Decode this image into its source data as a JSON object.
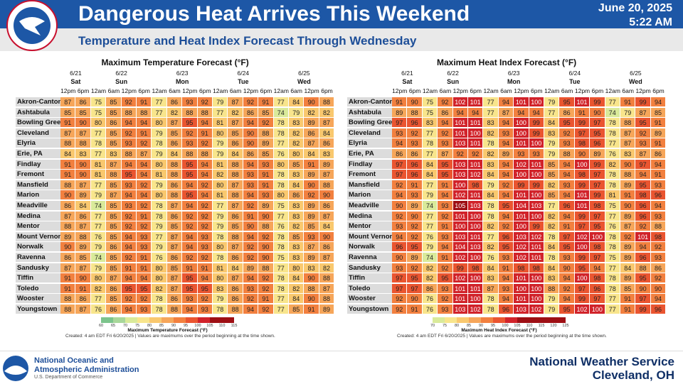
{
  "header": {
    "title": "Dangerous Heat Arrives This Weekend",
    "subtitle": "Temperature and Heat Index Forecast Through Wednesday",
    "date": "June 20, 2025",
    "time": "5:22 AM"
  },
  "tables": [
    {
      "title": "Maximum Temperature Forecast (°F)",
      "days": [
        {
          "date": "6/21",
          "day": "Sat",
          "times": [
            "12pm",
            "6pm"
          ]
        },
        {
          "date": "6/22",
          "day": "Sun",
          "times": [
            "12am",
            "6am",
            "12pm",
            "6pm"
          ]
        },
        {
          "date": "6/23",
          "day": "Mon",
          "times": [
            "12am",
            "6am",
            "12pm",
            "6pm"
          ]
        },
        {
          "date": "6/24",
          "day": "Tue",
          "times": [
            "12am",
            "6am",
            "12pm",
            "6pm"
          ]
        },
        {
          "date": "6/25",
          "day": "Wed",
          "times": [
            "12am",
            "6am",
            "12pm",
            "6pm"
          ]
        }
      ],
      "rows": [
        {
          "city": "Akron-Canton",
          "values": [
            87,
            86,
            75,
            85,
            92,
            91,
            77,
            86,
            93,
            92,
            79,
            87,
            92,
            91,
            77,
            84,
            90,
            88
          ]
        },
        {
          "city": "Ashtabula",
          "values": [
            85,
            85,
            75,
            85,
            88,
            88,
            77,
            82,
            88,
            88,
            77,
            82,
            86,
            85,
            74,
            79,
            82,
            82
          ]
        },
        {
          "city": "Bowling Green",
          "values": [
            91,
            90,
            80,
            86,
            94,
            94,
            80,
            87,
            95,
            94,
            81,
            87,
            94,
            92,
            78,
            83,
            89,
            87
          ]
        },
        {
          "city": "Cleveland",
          "values": [
            87,
            87,
            77,
            85,
            92,
            91,
            79,
            85,
            92,
            91,
            80,
            85,
            90,
            88,
            78,
            82,
            86,
            84
          ]
        },
        {
          "city": "Elyria",
          "values": [
            88,
            88,
            78,
            85,
            93,
            92,
            78,
            86,
            93,
            92,
            79,
            86,
            90,
            89,
            77,
            82,
            87,
            86
          ]
        },
        {
          "city": "Erie, PA",
          "values": [
            84,
            83,
            77,
            83,
            88,
            87,
            79,
            84,
            88,
            88,
            79,
            84,
            86,
            85,
            76,
            80,
            84,
            83
          ]
        },
        {
          "city": "Findlay",
          "values": [
            91,
            90,
            81,
            87,
            94,
            94,
            80,
            88,
            95,
            94,
            81,
            88,
            94,
            93,
            80,
            85,
            91,
            89
          ]
        },
        {
          "city": "Fremont",
          "values": [
            91,
            90,
            81,
            88,
            95,
            94,
            81,
            88,
            95,
            94,
            82,
            88,
            93,
            91,
            78,
            83,
            89,
            87
          ]
        },
        {
          "city": "Mansfield",
          "values": [
            88,
            87,
            77,
            85,
            93,
            92,
            79,
            86,
            94,
            92,
            80,
            87,
            93,
            91,
            78,
            84,
            90,
            88
          ]
        },
        {
          "city": "Marion",
          "values": [
            90,
            89,
            79,
            87,
            94,
            94,
            80,
            88,
            95,
            94,
            81,
            88,
            94,
            93,
            80,
            86,
            92,
            90
          ]
        },
        {
          "city": "Meadville",
          "values": [
            86,
            84,
            74,
            85,
            93,
            92,
            78,
            87,
            94,
            92,
            77,
            87,
            92,
            89,
            75,
            83,
            89,
            86
          ]
        },
        {
          "city": "Medina",
          "values": [
            87,
            86,
            77,
            85,
            92,
            91,
            78,
            86,
            92,
            92,
            79,
            86,
            91,
            90,
            77,
            83,
            89,
            87
          ]
        },
        {
          "city": "Mentor",
          "values": [
            88,
            87,
            77,
            85,
            92,
            92,
            79,
            85,
            92,
            92,
            79,
            85,
            90,
            88,
            76,
            82,
            85,
            84
          ]
        },
        {
          "city": "Mount Vernon",
          "values": [
            89,
            88,
            76,
            85,
            94,
            93,
            77,
            87,
            94,
            93,
            78,
            88,
            94,
            92,
            78,
            85,
            93,
            90
          ]
        },
        {
          "city": "Norwalk",
          "values": [
            90,
            89,
            79,
            86,
            94,
            93,
            79,
            87,
            94,
            93,
            80,
            87,
            92,
            90,
            78,
            83,
            87,
            86
          ]
        },
        {
          "city": "Ravenna",
          "values": [
            86,
            85,
            74,
            85,
            92,
            91,
            76,
            86,
            92,
            92,
            78,
            86,
            92,
            90,
            75,
            83,
            89,
            87
          ]
        },
        {
          "city": "Sandusky",
          "values": [
            87,
            87,
            79,
            85,
            91,
            91,
            80,
            85,
            91,
            91,
            81,
            84,
            89,
            88,
            77,
            80,
            83,
            82
          ]
        },
        {
          "city": "Tiffin",
          "values": [
            91,
            90,
            80,
            87,
            94,
            94,
            80,
            87,
            95,
            94,
            80,
            87,
            94,
            92,
            78,
            84,
            90,
            88
          ]
        },
        {
          "city": "Toledo",
          "values": [
            91,
            91,
            82,
            86,
            95,
            95,
            82,
            87,
            95,
            95,
            83,
            86,
            93,
            92,
            78,
            82,
            88,
            87
          ]
        },
        {
          "city": "Wooster",
          "values": [
            88,
            86,
            77,
            85,
            92,
            92,
            78,
            86,
            93,
            92,
            79,
            86,
            92,
            91,
            77,
            84,
            90,
            88
          ]
        },
        {
          "city": "Youngstown",
          "values": [
            88,
            87,
            76,
            86,
            94,
            93,
            78,
            88,
            94,
            93,
            78,
            88,
            94,
            92,
            77,
            85,
            91,
            89
          ]
        }
      ],
      "legend": {
        "values": [
          60,
          65,
          70,
          75,
          80,
          85,
          90,
          95,
          100,
          105,
          110,
          115
        ],
        "label": "Maximum Temperature Forecast (°F)"
      },
      "note": "Created: 4 am EDT Fri 6/20/2025 | Values are maximums over the period beginning at the time shown."
    },
    {
      "title": "Maximum Heat Index Forecast (°F)",
      "days": [
        {
          "date": "6/21",
          "day": "Sat",
          "times": [
            "12pm",
            "6pm"
          ]
        },
        {
          "date": "6/22",
          "day": "Sun",
          "times": [
            "12am",
            "6am",
            "12pm",
            "6pm"
          ]
        },
        {
          "date": "6/23",
          "day": "Mon",
          "times": [
            "12am",
            "6am",
            "12pm",
            "6pm"
          ]
        },
        {
          "date": "6/24",
          "day": "Tue",
          "times": [
            "12am",
            "6am",
            "12pm",
            "6pm"
          ]
        },
        {
          "date": "6/25",
          "day": "Wed",
          "times": [
            "12am",
            "6am",
            "12pm",
            "6pm"
          ]
        }
      ],
      "rows": [
        {
          "city": "Akron-Canton",
          "values": [
            91,
            90,
            75,
            92,
            102,
            101,
            77,
            94,
            101,
            100,
            79,
            95,
            101,
            99,
            77,
            91,
            99,
            94
          ]
        },
        {
          "city": "Ashtabula",
          "values": [
            89,
            88,
            75,
            86,
            94,
            94,
            77,
            87,
            94,
            94,
            77,
            86,
            91,
            90,
            74,
            79,
            87,
            85
          ]
        },
        {
          "city": "Bowling Green",
          "values": [
            97,
            96,
            83,
            94,
            101,
            101,
            83,
            94,
            100,
            99,
            84,
            95,
            99,
            97,
            78,
            88,
            95,
            91
          ]
        },
        {
          "city": "Cleveland",
          "values": [
            93,
            92,
            77,
            92,
            101,
            100,
            82,
            93,
            100,
            99,
            83,
            92,
            97,
            95,
            78,
            87,
            92,
            89
          ]
        },
        {
          "city": "Elyria",
          "values": [
            94,
            93,
            78,
            93,
            103,
            101,
            78,
            94,
            101,
            100,
            79,
            93,
            98,
            96,
            77,
            87,
            93,
            91
          ]
        },
        {
          "city": "Erie, PA",
          "values": [
            86,
            86,
            77,
            87,
            92,
            92,
            82,
            89,
            93,
            93,
            79,
            88,
            90,
            89,
            76,
            83,
            87,
            86
          ]
        },
        {
          "city": "Findlay",
          "values": [
            97,
            96,
            84,
            95,
            103,
            101,
            83,
            94,
            102,
            101,
            85,
            94,
            100,
            99,
            82,
            90,
            97,
            94
          ]
        },
        {
          "city": "Fremont",
          "values": [
            97,
            96,
            84,
            95,
            103,
            102,
            84,
            94,
            100,
            100,
            85,
            94,
            98,
            97,
            78,
            88,
            94,
            91
          ]
        },
        {
          "city": "Mansfield",
          "values": [
            92,
            91,
            77,
            91,
            100,
            98,
            79,
            92,
            99,
            99,
            82,
            93,
            99,
            97,
            78,
            89,
            95,
            93
          ]
        },
        {
          "city": "Marion",
          "values": [
            94,
            93,
            79,
            94,
            102,
            101,
            84,
            94,
            101,
            100,
            85,
            94,
            101,
            99,
            81,
            91,
            98,
            96
          ]
        },
        {
          "city": "Meadville",
          "values": [
            90,
            89,
            74,
            93,
            105,
            103,
            78,
            95,
            104,
            103,
            77,
            96,
            101,
            98,
            75,
            90,
            96,
            94
          ]
        },
        {
          "city": "Medina",
          "values": [
            92,
            90,
            77,
            92,
            101,
            100,
            78,
            94,
            101,
            100,
            82,
            94,
            99,
            97,
            77,
            89,
            96,
            93
          ]
        },
        {
          "city": "Mentor",
          "values": [
            93,
            92,
            77,
            91,
            100,
            100,
            82,
            92,
            100,
            99,
            82,
            91,
            97,
            95,
            76,
            87,
            92,
            88
          ]
        },
        {
          "city": "Mount Vernon",
          "values": [
            94,
            92,
            76,
            93,
            103,
            101,
            77,
            96,
            103,
            102,
            78,
            97,
            102,
            100,
            78,
            92,
            101,
            98
          ]
        },
        {
          "city": "Norwalk",
          "values": [
            96,
            95,
            79,
            94,
            104,
            103,
            82,
            95,
            102,
            101,
            84,
            95,
            100,
            98,
            78,
            89,
            94,
            92
          ]
        },
        {
          "city": "Ravenna",
          "values": [
            90,
            89,
            74,
            91,
            102,
            100,
            76,
            93,
            102,
            101,
            78,
            93,
            99,
            97,
            75,
            89,
            96,
            93
          ]
        },
        {
          "city": "Sandusky",
          "values": [
            93,
            92,
            82,
            92,
            99,
            98,
            84,
            91,
            98,
            98,
            84,
            90,
            95,
            94,
            77,
            84,
            88,
            86
          ]
        },
        {
          "city": "Tiffin",
          "values": [
            97,
            95,
            82,
            95,
            102,
            100,
            83,
            94,
            101,
            100,
            83,
            94,
            100,
            98,
            78,
            89,
            95,
            92
          ]
        },
        {
          "city": "Toledo",
          "values": [
            97,
            97,
            86,
            93,
            101,
            101,
            87,
            93,
            100,
            100,
            88,
            92,
            97,
            96,
            78,
            85,
            90,
            90
          ]
        },
        {
          "city": "Wooster",
          "values": [
            92,
            90,
            76,
            92,
            101,
            100,
            78,
            94,
            101,
            100,
            79,
            94,
            99,
            97,
            77,
            91,
            97,
            94
          ]
        },
        {
          "city": "Youngstown",
          "values": [
            92,
            91,
            76,
            93,
            103,
            102,
            78,
            96,
            103,
            102,
            79,
            95,
            102,
            100,
            77,
            91,
            99,
            96
          ]
        }
      ],
      "legend": {
        "values": [
          70,
          75,
          80,
          85,
          90,
          95,
          100,
          105,
          110,
          115,
          120,
          125
        ],
        "label": "Maximum Heat Index Forecast (°F)"
      },
      "note": "Created: 4 am EDT Fri 6/20/2025 | Values are maximums over the period beginning at the time shown."
    }
  ],
  "footer": {
    "agency_line1": "National Oceanic and",
    "agency_line2": "Atmospheric Administration",
    "department": "U.S. Department of Commerce",
    "office_name": "National Weather Service",
    "office_city": "Cleveland, OH"
  }
}
